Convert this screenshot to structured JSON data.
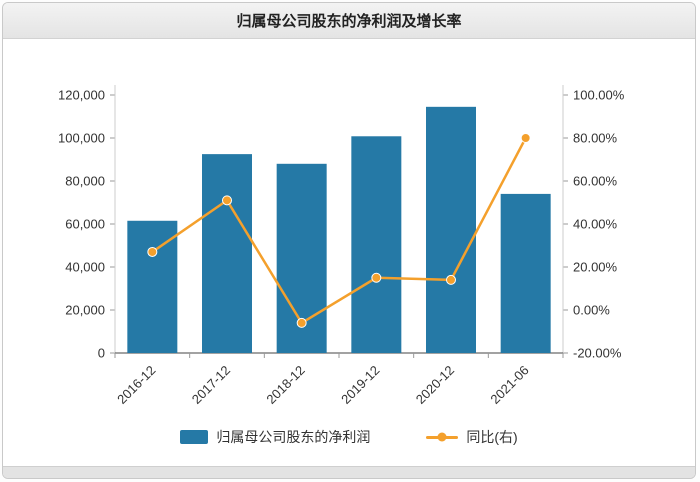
{
  "header": {
    "title": "归属母公司股东的净利润及增长率"
  },
  "chart_data": {
    "type": "bar",
    "subtype": "bar+line combo, dual axis",
    "title": "归属母公司股东的净利润及增长率",
    "categories": [
      "2016-12",
      "2017-12",
      "2018-12",
      "2019-12",
      "2020-12",
      "2021-06"
    ],
    "series": [
      {
        "name": "归属母公司股东的净利润",
        "type": "bar",
        "axis": "left",
        "values": [
          61500,
          92500,
          88000,
          100800,
          114500,
          74000
        ],
        "color": "#2579a6"
      },
      {
        "name": "同比(右)",
        "type": "line",
        "axis": "right",
        "values": [
          27,
          51,
          -6,
          15,
          14,
          80
        ],
        "color": "#f4a02c"
      }
    ],
    "left_axis": {
      "min": 0,
      "max": 120000,
      "step": 20000,
      "tick_labels": [
        "0",
        "20,000",
        "40,000",
        "60,000",
        "80,000",
        "100,000",
        "120,000"
      ]
    },
    "right_axis": {
      "min": -20,
      "max": 100,
      "step": 20,
      "tick_labels": [
        "-20.00%",
        "0.00%",
        "20.00%",
        "40.00%",
        "60.00%",
        "80.00%",
        "100.00%"
      ]
    },
    "grid": false,
    "legend_position": "bottom",
    "legend": [
      {
        "label": "归属母公司股东的净利润",
        "marker": "bar",
        "color": "#2579a6"
      },
      {
        "label": "同比(右)",
        "marker": "line-dot",
        "color": "#f4a02c"
      }
    ]
  }
}
